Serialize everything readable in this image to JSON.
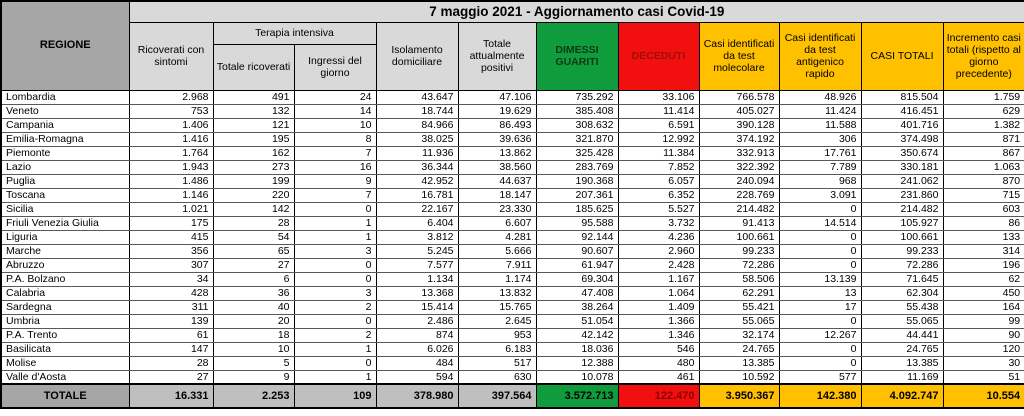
{
  "title": "7 maggio 2021 - Aggiornamento casi Covid-19",
  "headers": {
    "regione": "REGIONE",
    "ricoverati": "Ricoverati con sintomi",
    "terapia_intensiva": "Terapia intensiva",
    "totale_ricoverati": "Totale ricoverati",
    "ingressi": "Ingressi del giorno",
    "isolamento": "Isolamento domiciliare",
    "attualmente_positivi": "Totale attualmente positivi",
    "dimessi_guariti": "DIMESSI GUARITI",
    "deceduti": "DECEDUTI",
    "test_molecolare": "Casi identificati da test molecolare",
    "test_antigenico": "Casi identificati da test antigenico rapido",
    "casi_totali": "CASI TOTALI",
    "incremento": "Incremento casi totali (rispetto al giorno precedente)"
  },
  "colors": {
    "header_grey": "#D9D9D9",
    "regione_grey": "#A6A6A6",
    "totale_grey": "#BFBFBF",
    "green": "#109C3C",
    "red": "#F20F0F",
    "yellow": "#FFC000"
  },
  "chart_data": {
    "type": "table",
    "title": "7 maggio 2021 - Aggiornamento casi Covid-19",
    "columns": [
      "REGIONE",
      "Ricoverati con sintomi",
      "Terapia intensiva - Totale ricoverati",
      "Terapia intensiva - Ingressi del giorno",
      "Isolamento domiciliare",
      "Totale attualmente positivi",
      "DIMESSI GUARITI",
      "DECEDUTI",
      "Casi identificati da test molecolare",
      "Casi identificati da test antigenico rapido",
      "CASI TOTALI",
      "Incremento casi totali (rispetto al giorno precedente)"
    ],
    "rows": [
      [
        "Lombardia",
        "2.968",
        "491",
        "24",
        "43.647",
        "47.106",
        "735.292",
        "33.106",
        "766.578",
        "48.926",
        "815.504",
        "1.759"
      ],
      [
        "Veneto",
        "753",
        "132",
        "14",
        "18.744",
        "19.629",
        "385.408",
        "11.414",
        "405.027",
        "11.424",
        "416.451",
        "629"
      ],
      [
        "Campania",
        "1.406",
        "121",
        "10",
        "84.966",
        "86.493",
        "308.632",
        "6.591",
        "390.128",
        "11.588",
        "401.716",
        "1.382"
      ],
      [
        "Emilia-Romagna",
        "1.416",
        "195",
        "8",
        "38.025",
        "39.636",
        "321.870",
        "12.992",
        "374.192",
        "306",
        "374.498",
        "871"
      ],
      [
        "Piemonte",
        "1.764",
        "162",
        "7",
        "11.936",
        "13.862",
        "325.428",
        "11.384",
        "332.913",
        "17.761",
        "350.674",
        "867"
      ],
      [
        "Lazio",
        "1.943",
        "273",
        "16",
        "36.344",
        "38.560",
        "283.769",
        "7.852",
        "322.392",
        "7.789",
        "330.181",
        "1.063"
      ],
      [
        "Puglia",
        "1.486",
        "199",
        "9",
        "42.952",
        "44.637",
        "190.368",
        "6.057",
        "240.094",
        "968",
        "241.062",
        "870"
      ],
      [
        "Toscana",
        "1.146",
        "220",
        "7",
        "16.781",
        "18.147",
        "207.361",
        "6.352",
        "228.769",
        "3.091",
        "231.860",
        "715"
      ],
      [
        "Sicilia",
        "1.021",
        "142",
        "0",
        "22.167",
        "23.330",
        "185.625",
        "5.527",
        "214.482",
        "0",
        "214.482",
        "603"
      ],
      [
        "Friuli Venezia Giulia",
        "175",
        "28",
        "1",
        "6.404",
        "6.607",
        "95.588",
        "3.732",
        "91.413",
        "14.514",
        "105.927",
        "86"
      ],
      [
        "Liguria",
        "415",
        "54",
        "1",
        "3.812",
        "4.281",
        "92.144",
        "4.236",
        "100.661",
        "0",
        "100.661",
        "133"
      ],
      [
        "Marche",
        "356",
        "65",
        "3",
        "5.245",
        "5.666",
        "90.607",
        "2.960",
        "99.233",
        "0",
        "99.233",
        "314"
      ],
      [
        "Abruzzo",
        "307",
        "27",
        "0",
        "7.577",
        "7.911",
        "61.947",
        "2.428",
        "72.286",
        "0",
        "72.286",
        "196"
      ],
      [
        "P.A. Bolzano",
        "34",
        "6",
        "0",
        "1.134",
        "1.174",
        "69.304",
        "1.167",
        "58.506",
        "13.139",
        "71.645",
        "62"
      ],
      [
        "Calabria",
        "428",
        "36",
        "3",
        "13.368",
        "13.832",
        "47.408",
        "1.064",
        "62.291",
        "13",
        "62.304",
        "450"
      ],
      [
        "Sardegna",
        "311",
        "40",
        "2",
        "15.414",
        "15.765",
        "38.264",
        "1.409",
        "55.421",
        "17",
        "55.438",
        "164"
      ],
      [
        "Umbria",
        "139",
        "20",
        "0",
        "2.486",
        "2.645",
        "51.054",
        "1.366",
        "55.065",
        "0",
        "55.065",
        "99"
      ],
      [
        "P.A. Trento",
        "61",
        "18",
        "2",
        "874",
        "953",
        "42.142",
        "1.346",
        "32.174",
        "12.267",
        "44.441",
        "90"
      ],
      [
        "Basilicata",
        "147",
        "10",
        "1",
        "6.026",
        "6.183",
        "18.036",
        "546",
        "24.765",
        "0",
        "24.765",
        "120"
      ],
      [
        "Molise",
        "28",
        "5",
        "0",
        "484",
        "517",
        "12.388",
        "480",
        "13.385",
        "0",
        "13.385",
        "30"
      ],
      [
        "Valle d'Aosta",
        "27",
        "9",
        "1",
        "594",
        "630",
        "10.078",
        "461",
        "10.592",
        "577",
        "11.169",
        "51"
      ]
    ],
    "totale": [
      "TOTALE",
      "16.331",
      "2.253",
      "109",
      "378.980",
      "397.564",
      "3.572.713",
      "122.470",
      "3.950.367",
      "142.380",
      "4.092.747",
      "10.554"
    ]
  }
}
